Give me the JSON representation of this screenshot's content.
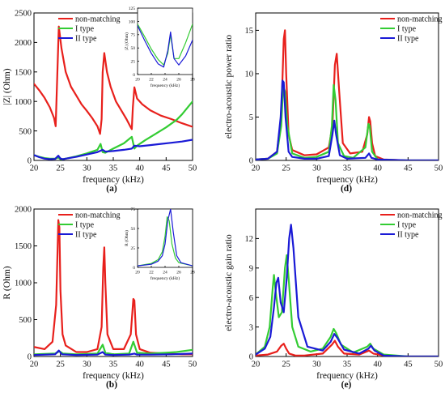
{
  "chart_data": [
    {
      "type": "line",
      "panel_label": "(a)",
      "title": "",
      "xlabel": "frequency (kHz)",
      "ylabel": "|Z| (Ohm)",
      "xlim": [
        20,
        50
      ],
      "ylim": [
        0,
        2500
      ],
      "xticks": [
        20,
        25,
        30,
        35,
        40,
        45,
        50
      ],
      "yticks": [
        0,
        500,
        1000,
        1500,
        2000,
        2500
      ],
      "legend": "top-left",
      "grid": false,
      "series": [
        {
          "name": "non-matching",
          "color": "#e8201c",
          "x": [
            20,
            21,
            22,
            23,
            23.8,
            24.1,
            24.4,
            24.7,
            25.2,
            26,
            27,
            28,
            29,
            30,
            31,
            32,
            32.5,
            32.8,
            33.0,
            33.3,
            33.8,
            34.5,
            35.5,
            36.5,
            37.5,
            38.2,
            38.5,
            38.7,
            39.0,
            39.5,
            40.5,
            42,
            44,
            46,
            48,
            50
          ],
          "y": [
            1300,
            1190,
            1060,
            900,
            720,
            580,
            1400,
            2270,
            1900,
            1500,
            1250,
            1100,
            950,
            840,
            720,
            580,
            450,
            700,
            1500,
            1820,
            1500,
            1250,
            1000,
            850,
            700,
            580,
            530,
            900,
            1240,
            1050,
            950,
            850,
            760,
            700,
            630,
            570
          ]
        },
        {
          "name": "I type",
          "color": "#33cc33",
          "x": [
            20,
            21,
            22,
            23,
            24,
            24.6,
            25,
            25.5,
            26,
            28,
            30,
            32,
            32.6,
            33,
            33.5,
            35,
            37,
            38.5,
            39,
            39.5,
            41,
            43,
            45,
            47,
            48,
            50
          ],
          "y": [
            90,
            60,
            40,
            30,
            30,
            50,
            20,
            20,
            30,
            70,
            120,
            180,
            280,
            140,
            130,
            200,
            290,
            400,
            200,
            250,
            340,
            450,
            560,
            690,
            780,
            1000
          ]
        },
        {
          "name": "II type",
          "color": "#1a1ad6",
          "x": [
            20,
            21,
            22,
            23,
            24,
            24.6,
            25,
            25.5,
            26,
            28,
            30,
            32,
            33,
            33.5,
            35,
            37,
            38.5,
            39,
            40,
            42,
            44,
            46,
            48,
            50
          ],
          "y": [
            90,
            55,
            30,
            20,
            25,
            80,
            30,
            20,
            30,
            60,
            100,
            140,
            180,
            150,
            160,
            180,
            200,
            250,
            240,
            260,
            280,
            300,
            320,
            350
          ]
        }
      ],
      "inset": {
        "xlabel": "frequency (kHz)",
        "ylabel": "|Z| (Ohm)",
        "xlim": [
          20,
          28
        ],
        "ylim": [
          0,
          125
        ],
        "xticks": [
          20,
          22,
          24,
          26,
          28
        ],
        "yticks": [
          0,
          25,
          50,
          75,
          100,
          125
        ],
        "series": [
          {
            "color": "#e8201c",
            "x": [],
            "y": []
          },
          {
            "color": "#33cc33",
            "x": [
              20,
              21,
              22,
              23,
              23.8,
              24.4,
              24.8,
              25.3,
              26,
              27,
              28
            ],
            "y": [
              95,
              72,
              48,
              28,
              18,
              40,
              75,
              30,
              30,
              60,
              95
            ]
          },
          {
            "color": "#1a1ad6",
            "x": [
              20,
              21,
              22,
              23,
              23.8,
              24.4,
              24.8,
              25.3,
              26,
              27,
              28
            ],
            "y": [
              92,
              65,
              40,
              20,
              14,
              45,
              80,
              30,
              18,
              35,
              65
            ]
          }
        ]
      }
    },
    {
      "type": "line",
      "panel_label": "(b)",
      "title": "",
      "xlabel": "frequency (kHz)",
      "ylabel": "R (Ohm)",
      "xlim": [
        20,
        50
      ],
      "ylim": [
        0,
        2000
      ],
      "xticks": [
        20,
        25,
        30,
        35,
        40,
        45,
        50
      ],
      "yticks": [
        0,
        500,
        1000,
        1500,
        2000
      ],
      "legend": "top-left",
      "grid": false,
      "series": [
        {
          "name": "non-matching",
          "color": "#e8201c",
          "x": [
            20,
            22,
            23.5,
            24.2,
            24.6,
            24.8,
            25.0,
            25.4,
            26,
            28,
            30,
            32,
            32.8,
            33.1,
            33.3,
            33.5,
            33.9,
            35,
            37,
            38.3,
            38.8,
            39.0,
            39.3,
            40,
            42,
            45,
            48,
            50
          ],
          "y": [
            130,
            100,
            200,
            700,
            1850,
            1750,
            900,
            300,
            150,
            60,
            60,
            100,
            400,
            1200,
            1480,
            1000,
            300,
            100,
            100,
            300,
            780,
            760,
            300,
            100,
            50,
            40,
            30,
            30
          ]
        },
        {
          "name": "I type",
          "color": "#33cc33",
          "x": [
            20,
            24,
            24.8,
            25.5,
            28,
            32,
            33,
            33.5,
            35,
            38,
            38.8,
            39.5,
            42,
            45,
            47,
            50
          ],
          "y": [
            30,
            40,
            70,
            40,
            30,
            40,
            160,
            50,
            30,
            40,
            200,
            50,
            40,
            50,
            60,
            90
          ]
        },
        {
          "name": "II type",
          "color": "#1a1ad6",
          "x": [
            20,
            24,
            24.7,
            25.3,
            28,
            32,
            33,
            33.5,
            35,
            38,
            39,
            39.5,
            42,
            46,
            50
          ],
          "y": [
            20,
            30,
            80,
            30,
            20,
            25,
            60,
            25,
            20,
            25,
            40,
            25,
            25,
            30,
            40
          ]
        }
      ],
      "inset": {
        "xlabel": "frequency (kHz)",
        "ylabel": "R (Ohm)",
        "xlim": [
          20,
          28
        ],
        "ylim": [
          0,
          75
        ],
        "xticks": [
          20,
          22,
          24,
          26,
          28
        ],
        "yticks": [
          0,
          25,
          50,
          75
        ],
        "series": [
          {
            "color": "#e8201c",
            "x": [],
            "y": []
          },
          {
            "color": "#33cc33",
            "x": [
              20,
              22,
              23,
              23.6,
              24.0,
              24.3,
              24.6,
              25.0,
              25.5,
              26,
              28
            ],
            "y": [
              2,
              5,
              10,
              20,
              40,
              65,
              60,
              30,
              12,
              6,
              2
            ]
          },
          {
            "color": "#1a1ad6",
            "x": [
              20,
              22,
              23,
              23.6,
              24.0,
              24.4,
              24.8,
              25.2,
              25.7,
              26.3,
              28
            ],
            "y": [
              2,
              4,
              8,
              15,
              30,
              60,
              75,
              45,
              15,
              6,
              2
            ]
          }
        ]
      }
    },
    {
      "type": "line",
      "panel_label": "(d)",
      "title": "",
      "xlabel": "frequency (kHz)",
      "ylabel": "electro-acoustic power ratio",
      "xlim": [
        20,
        50
      ],
      "ylim": [
        0,
        17
      ],
      "xticks": [
        20,
        25,
        30,
        35,
        40,
        45,
        50
      ],
      "yticks": [
        0,
        5,
        10,
        15
      ],
      "legend": "top-right",
      "grid": false,
      "series": [
        {
          "name": "non-matching",
          "color": "#e8201c",
          "x": [
            20,
            22,
            23.5,
            24.2,
            24.6,
            24.8,
            25.0,
            25.4,
            26,
            28,
            30,
            32,
            32.6,
            33.0,
            33.3,
            33.7,
            34.3,
            35.5,
            37.5,
            38.3,
            38.6,
            38.8,
            39.1,
            39.6,
            41,
            45,
            50
          ],
          "y": [
            0.1,
            0.2,
            1.0,
            5,
            14,
            15,
            10,
            3,
            1.2,
            0.6,
            0.7,
            1.5,
            4,
            11,
            12.3,
            8,
            2,
            0.8,
            1.0,
            3,
            5,
            4.5,
            2,
            0.5,
            0.1,
            0,
            0
          ]
        },
        {
          "name": "I type",
          "color": "#33cc33",
          "x": [
            20,
            22,
            23.5,
            24.2,
            24.5,
            24.8,
            25.2,
            26,
            28,
            30,
            32,
            32.5,
            32.8,
            33.1,
            33.5,
            34.5,
            36,
            38,
            38.5,
            38.7,
            39.1,
            40,
            45,
            50
          ],
          "y": [
            0.1,
            0.2,
            0.8,
            4,
            8.5,
            8,
            4,
            0.8,
            0.3,
            0.4,
            1,
            4,
            8.7,
            7,
            2,
            0.5,
            0.3,
            1.5,
            4.2,
            4,
            1,
            0.1,
            0,
            0
          ]
        },
        {
          "name": "II type",
          "color": "#1a1ad6",
          "x": [
            20,
            22,
            23.5,
            24.1,
            24.4,
            24.6,
            24.9,
            25.4,
            26,
            28,
            30,
            32,
            32.6,
            32.9,
            33.2,
            33.8,
            35,
            38,
            38.6,
            39,
            40,
            45,
            50
          ],
          "y": [
            0.1,
            0.2,
            1.0,
            5,
            9.2,
            9,
            5,
            1,
            0.4,
            0.2,
            0.2,
            0.5,
            3,
            4.6,
            3,
            0.6,
            0.2,
            0.3,
            0.8,
            0.3,
            0.1,
            0,
            0
          ]
        }
      ]
    },
    {
      "type": "line",
      "panel_label": "(e)",
      "title": "",
      "xlabel": "frequency (kHz)",
      "ylabel": "electro-acoustic gain ratio",
      "xlim": [
        20,
        50
      ],
      "ylim": [
        0,
        15
      ],
      "xticks": [
        20,
        25,
        30,
        35,
        40,
        45,
        50
      ],
      "yticks": [
        0,
        3,
        6,
        9,
        12
      ],
      "legend": "top-right",
      "grid": false,
      "series": [
        {
          "name": "non-matching",
          "color": "#e8201c",
          "x": [
            20,
            22,
            23.5,
            24.2,
            24.6,
            25.0,
            25.5,
            26.5,
            28,
            31,
            32.5,
            33.0,
            33.5,
            34.5,
            37,
            38.6,
            39.3,
            41,
            45,
            50
          ],
          "y": [
            0.1,
            0.2,
            0.5,
            1.1,
            1.3,
            0.8,
            0.3,
            0.1,
            0.1,
            0.3,
            1.2,
            1.6,
            1.0,
            0.3,
            0.2,
            0.6,
            0.3,
            0.1,
            0,
            0
          ]
        },
        {
          "name": "I type",
          "color": "#33cc33",
          "x": [
            20,
            21.5,
            22.3,
            22.8,
            23.0,
            23.3,
            23.8,
            24.3,
            24.8,
            25.1,
            25.4,
            26,
            27,
            29,
            31,
            32.3,
            32.8,
            33.2,
            34,
            36,
            38.3,
            38.8,
            39.3,
            41,
            45,
            50
          ],
          "y": [
            0.2,
            1.0,
            3,
            7,
            8.3,
            6.5,
            4,
            4.5,
            9,
            10.3,
            8,
            3,
            1,
            0.5,
            0.8,
            2,
            2.8,
            2.4,
            1.2,
            0.4,
            1,
            1.3,
            0.8,
            0.2,
            0,
            0
          ]
        },
        {
          "name": "II type",
          "color": "#1a1ad6",
          "x": [
            20,
            21.5,
            22.4,
            23.0,
            23.4,
            23.7,
            24.1,
            24.6,
            25.1,
            25.5,
            25.8,
            26.2,
            27,
            28.5,
            31,
            32.3,
            32.9,
            33.4,
            34.5,
            37,
            38.5,
            38.9,
            39.5,
            41,
            45,
            50
          ],
          "y": [
            0.2,
            0.8,
            2,
            5,
            7.5,
            8,
            5.5,
            4.5,
            8,
            12,
            13.4,
            11,
            4,
            1,
            0.6,
            1.5,
            2.3,
            1.9,
            0.7,
            0.3,
            0.8,
            1.1,
            0.6,
            0.1,
            0,
            0
          ]
        }
      ]
    }
  ]
}
